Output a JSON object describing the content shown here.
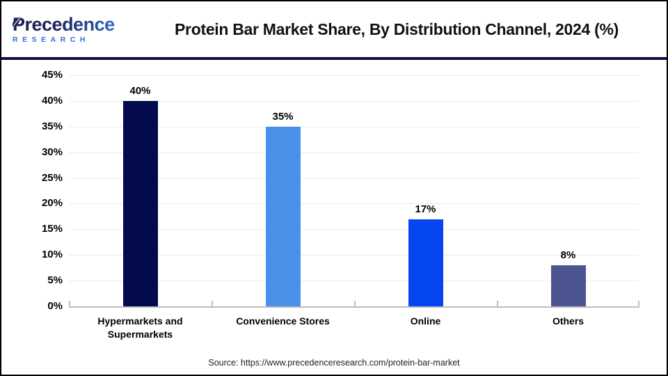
{
  "header": {
    "logo": {
      "line1": "Precedence",
      "line2": "RESEARCH"
    },
    "title": "Protein Bar Market Share, By Distribution Channel, 2024 (%)"
  },
  "chart_data": {
    "type": "bar",
    "title": "Protein Bar Market Share, By Distribution Channel, 2024 (%)",
    "categories": [
      "Hypermarkets and Supermarkets",
      "Convenience Stores",
      "Online",
      "Others"
    ],
    "values": [
      40,
      35,
      17,
      8
    ],
    "value_labels": [
      "40%",
      "35%",
      "17%",
      "8%"
    ],
    "bar_colors": [
      "#030A4D",
      "#4B90E8",
      "#0546F0",
      "#4D5590"
    ],
    "ylim": [
      0,
      45
    ],
    "ytick_step": 5,
    "ytick_labels": [
      "0%",
      "5%",
      "10%",
      "15%",
      "20%",
      "25%",
      "30%",
      "35%",
      "40%",
      "45%"
    ],
    "grid": "horizontal",
    "legend": "none",
    "xlabel": "",
    "ylabel": ""
  },
  "footer": {
    "source_text": "Source: https://www.precedenceresearch.com/protein-bar-market"
  },
  "colors": {
    "bar_navy": "#030A4D",
    "bar_light_blue": "#4B90E8",
    "bar_bright_blue": "#0546F0",
    "bar_slate": "#4D5590",
    "separator_navy": "#0B1040",
    "axis_gray": "#BDBDBD",
    "gridline_gray": "#ECECEC",
    "logo_navy": "#1A2158",
    "logo_blue": "#2F6FD6",
    "title_black": "#111111",
    "border_black": "#000000"
  }
}
